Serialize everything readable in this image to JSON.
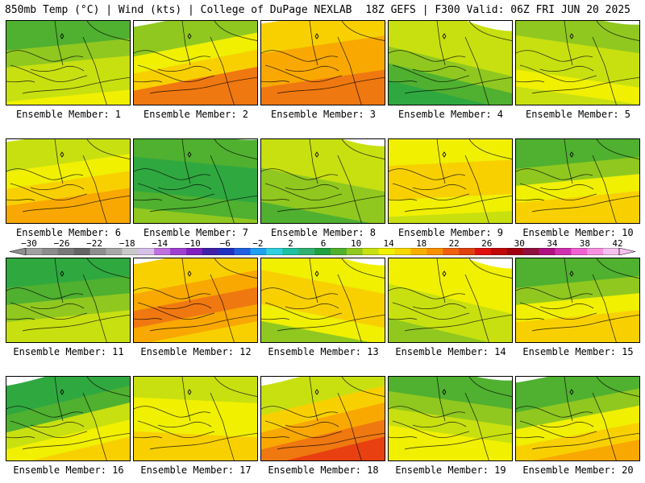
{
  "header": {
    "left_title": "850mb Temp (°C) | Wind (kts) | College of DuPage NEXLAB",
    "right_title": "18Z GEFS | F300 Valid: 06Z FRI JUN 20 2025"
  },
  "caption_prefix": "Ensemble Member: ",
  "panels": [
    {
      "member": "1",
      "temps": [
        8,
        10,
        12,
        12,
        14
      ],
      "tilt": 0.2
    },
    {
      "member": "2",
      "temps": [
        10,
        14,
        16,
        20,
        20
      ],
      "tilt": 0.4
    },
    {
      "member": "3",
      "temps": [
        16,
        18,
        18,
        20,
        20
      ],
      "tilt": 0.3
    },
    {
      "member": "4",
      "temps": [
        12,
        12,
        10,
        8,
        6
      ],
      "tilt": -0.5
    },
    {
      "member": "5",
      "temps": [
        10,
        12,
        12,
        14,
        12
      ],
      "tilt": -0.3
    },
    {
      "member": "6",
      "temps": [
        12,
        14,
        16,
        18,
        18
      ],
      "tilt": 0.3
    },
    {
      "member": "7",
      "temps": [
        8,
        6,
        6,
        8,
        10
      ],
      "tilt": -0.2
    },
    {
      "member": "8",
      "temps": [
        12,
        12,
        10,
        10,
        8
      ],
      "tilt": -0.4
    },
    {
      "member": "9",
      "temps": [
        14,
        16,
        16,
        14,
        12
      ],
      "tilt": 0.1
    },
    {
      "member": "10",
      "temps": [
        8,
        10,
        14,
        16,
        16
      ],
      "tilt": 0.2
    },
    {
      "member": "11",
      "temps": [
        6,
        8,
        10,
        12,
        12
      ],
      "tilt": 0.2
    },
    {
      "member": "12",
      "temps": [
        16,
        18,
        20,
        18,
        16
      ],
      "tilt": 0.4
    },
    {
      "member": "13",
      "temps": [
        14,
        16,
        16,
        14,
        10
      ],
      "tilt": -0.4
    },
    {
      "member": "14",
      "temps": [
        14,
        14,
        12,
        12,
        10
      ],
      "tilt": -0.5
    },
    {
      "member": "15",
      "temps": [
        8,
        10,
        14,
        16,
        16
      ],
      "tilt": 0.2
    },
    {
      "member": "16",
      "temps": [
        6,
        8,
        12,
        14,
        16
      ],
      "tilt": 0.5
    },
    {
      "member": "17",
      "temps": [
        12,
        14,
        14,
        16,
        16
      ],
      "tilt": -0.1
    },
    {
      "member": "18",
      "temps": [
        12,
        16,
        18,
        20,
        22
      ],
      "tilt": 0.5
    },
    {
      "member": "19",
      "temps": [
        8,
        10,
        12,
        14,
        14
      ],
      "tilt": -0.3
    },
    {
      "member": "20",
      "temps": [
        8,
        10,
        14,
        16,
        18
      ],
      "tilt": 0.4
    }
  ],
  "colorbar": {
    "tick_labels": [
      "-30",
      "-26",
      "-22",
      "-18",
      "-14",
      "-10",
      "-6",
      "-2",
      "2",
      "6",
      "10",
      "14",
      "18",
      "22",
      "26",
      "30",
      "34",
      "38",
      "42"
    ],
    "colors": [
      "#a0a0a0",
      "#8c8c8c",
      "#787878",
      "#646464",
      "#8e8e8e",
      "#a8a8a8",
      "#c8c8c8",
      "#d8c0e8",
      "#c070e0",
      "#a040d0",
      "#8020c0",
      "#4020a8",
      "#2030c0",
      "#2060e0",
      "#20a0f0",
      "#30d0e0",
      "#20c0a0",
      "#30b070",
      "#20a040",
      "#50b030",
      "#90c820",
      "#c8e010",
      "#f0f000",
      "#f8d800",
      "#f8b000",
      "#f89000",
      "#f06010",
      "#e04010",
      "#e01010",
      "#c00808",
      "#a00010",
      "#901040",
      "#b01080",
      "#d030b0",
      "#f060d0",
      "#f890e0",
      "#f8c0f0"
    ],
    "arrow_color": "#909090"
  }
}
